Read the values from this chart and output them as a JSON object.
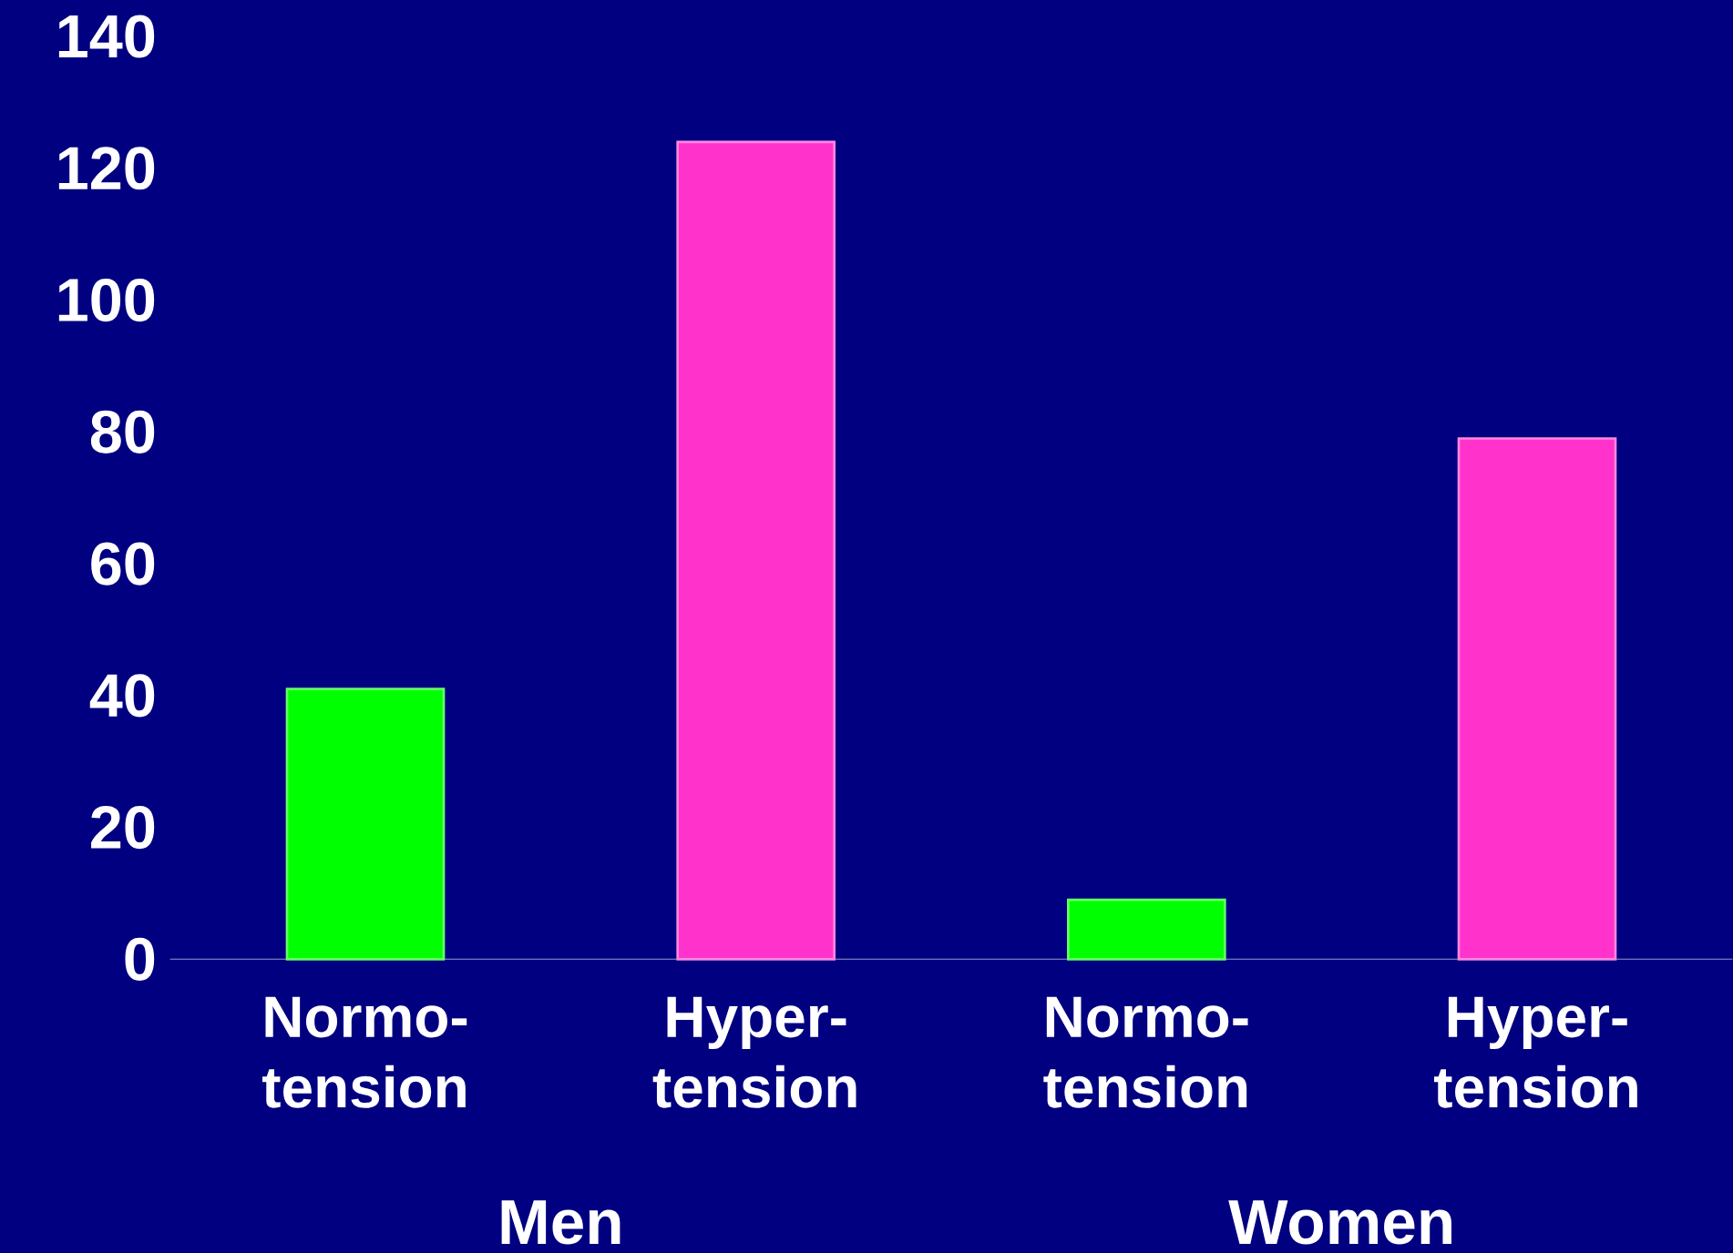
{
  "chart_data": {
    "type": "bar",
    "categories": [
      "Normo- tension",
      "Hyper- tension",
      "Normo- tension",
      "Hyper- tension"
    ],
    "values": [
      41,
      124,
      9,
      79
    ],
    "colors": [
      "#00ff00",
      "#ff33cc",
      "#00ff00",
      "#ff33cc"
    ],
    "ylim": [
      0,
      140
    ],
    "yticks": [
      0,
      20,
      40,
      60,
      80,
      100,
      120,
      140
    ],
    "annotations": [
      "Men",
      "Women"
    ]
  }
}
